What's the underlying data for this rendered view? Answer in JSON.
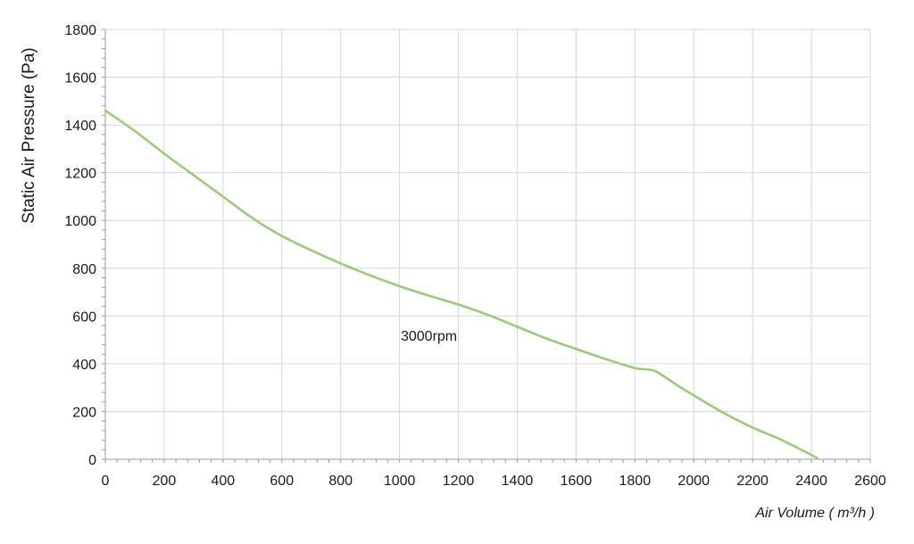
{
  "chart_data": {
    "type": "line",
    "title": "",
    "xlabel": "Air Volume ( m³/h )",
    "ylabel": "Static Air Pressure  (Pa)",
    "xlim": [
      0,
      2600
    ],
    "ylim": [
      0,
      1800
    ],
    "x_ticks": [
      0,
      200,
      400,
      600,
      800,
      1000,
      1200,
      1400,
      1600,
      1800,
      2000,
      2200,
      2400,
      2600
    ],
    "y_ticks": [
      0,
      200,
      400,
      600,
      800,
      1000,
      1200,
      1400,
      1600,
      1800
    ],
    "x_tick_labels": [
      "0",
      "200",
      "400",
      "600",
      "800",
      "1000",
      "1200",
      "1400",
      "1600",
      "1800",
      "2000",
      "2200",
      "2400",
      "2600"
    ],
    "y_tick_labels": [
      "0",
      "200",
      "400",
      "600",
      "800",
      "1000",
      "1200",
      "1400",
      "1600",
      "1800"
    ],
    "grid": true,
    "legend": "none",
    "annotations": [
      {
        "text": "3000rpm",
        "x": 1100,
        "y": 520
      }
    ],
    "series": [
      {
        "color": "#9cc97e",
        "x": [
          0,
          100,
          200,
          300,
          400,
          500,
          600,
          700,
          800,
          900,
          1000,
          1100,
          1200,
          1300,
          1400,
          1500,
          1600,
          1700,
          1800,
          1850,
          1880,
          1950,
          2000,
          2100,
          2200,
          2300,
          2420
        ],
        "y": [
          1460,
          1375,
          1280,
          1190,
          1100,
          1010,
          935,
          875,
          820,
          770,
          725,
          685,
          648,
          605,
          555,
          505,
          462,
          420,
          382,
          375,
          362,
          305,
          268,
          195,
          133,
          80,
          5
        ]
      }
    ]
  }
}
